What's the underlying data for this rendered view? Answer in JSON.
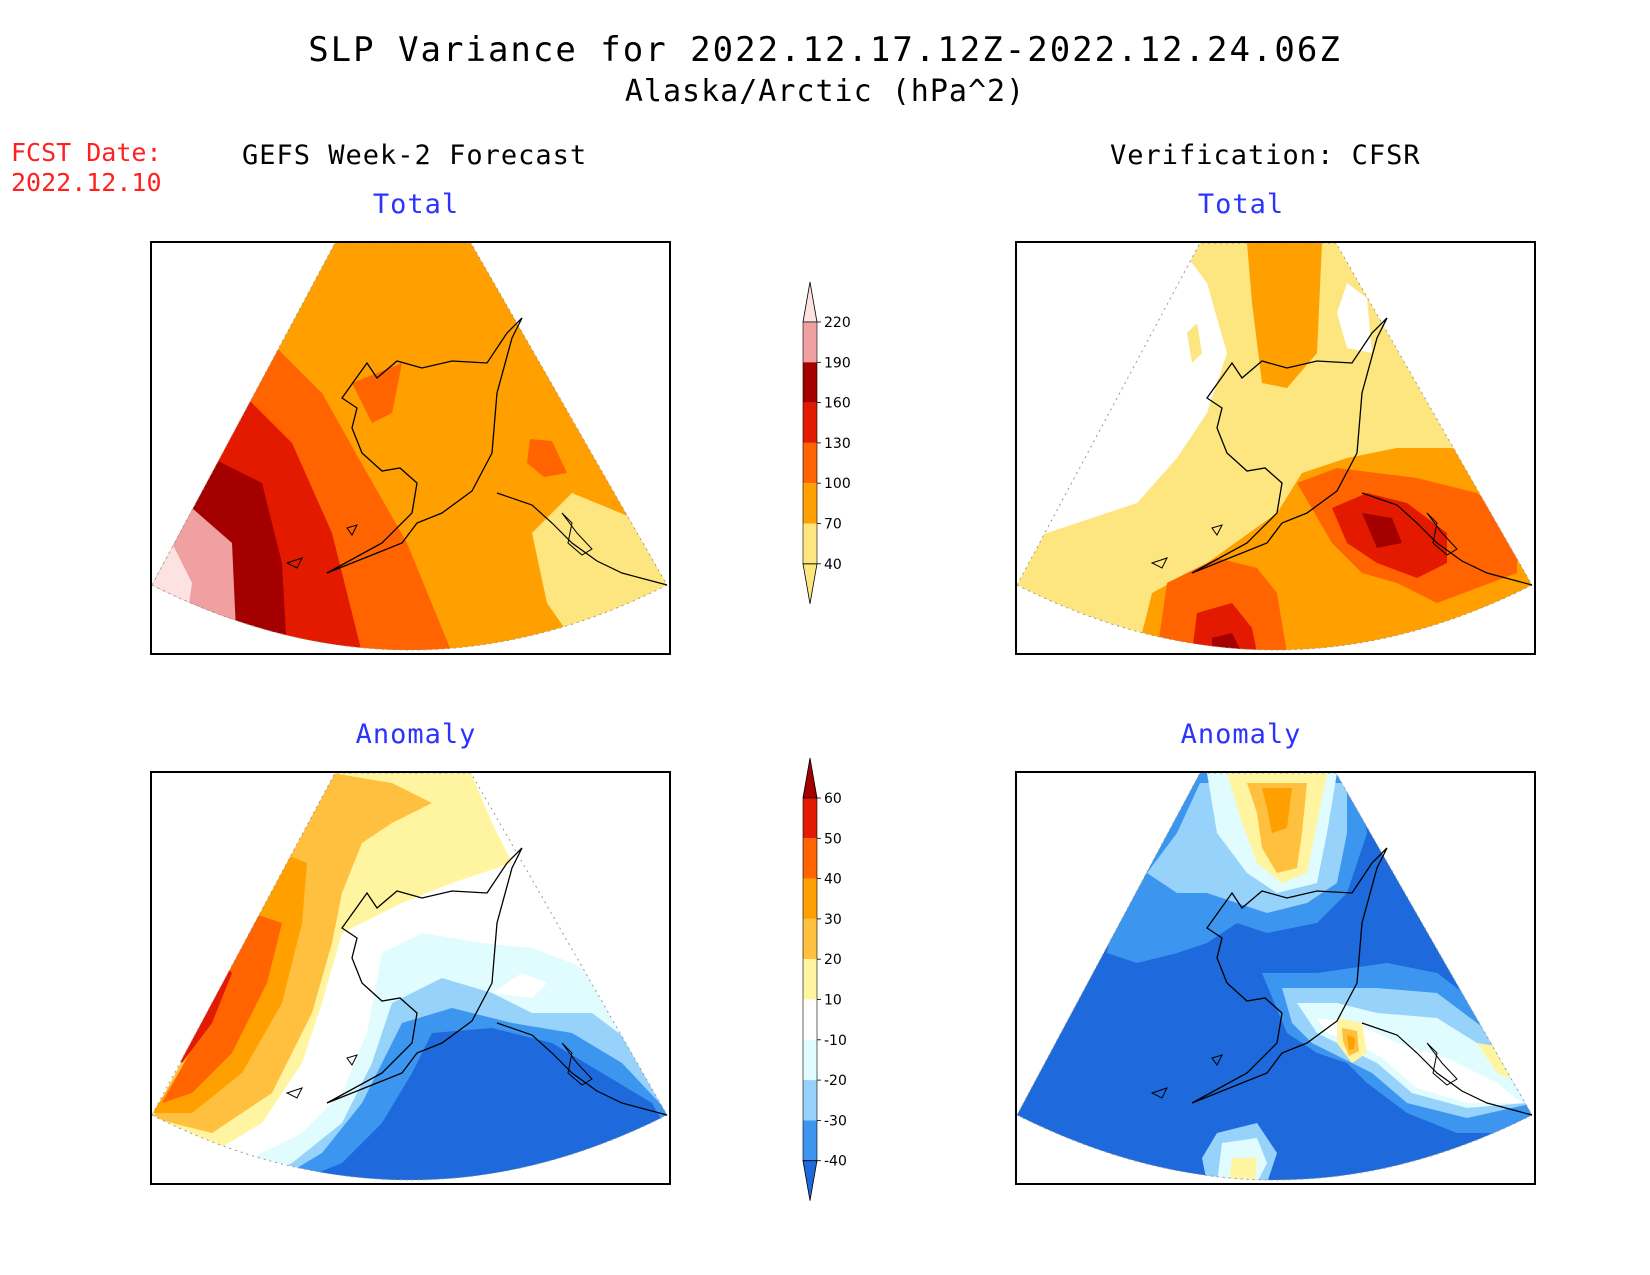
{
  "header": {
    "title": "SLP Variance for 2022.12.17.12Z-2022.12.24.06Z",
    "subtitle": "Alaska/Arctic (hPa^2)"
  },
  "fcst_date": {
    "label": "FCST Date:",
    "value": "2022.12.10"
  },
  "columns": {
    "left": "GEFS Week-2 Forecast",
    "right": "Verification: CFSR"
  },
  "panels": {
    "forecast_total": {
      "title": "Total"
    },
    "verification_total": {
      "title": "Total"
    },
    "forecast_anomaly": {
      "title": "Anomaly"
    },
    "verification_anomaly": {
      "title": "Anomaly"
    }
  },
  "colorbars": {
    "total": {
      "ticks": [
        "40",
        "70",
        "100",
        "130",
        "160",
        "190",
        "220"
      ],
      "colors": [
        "#fde680",
        "#ffa000",
        "#ff6400",
        "#e41a00",
        "#a50000",
        "#f0a0a0",
        "#fde2e2"
      ]
    },
    "anomaly": {
      "ticks": [
        "-40",
        "-30",
        "-20",
        "-10",
        "10",
        "20",
        "30",
        "40",
        "50",
        "60"
      ],
      "colors": [
        "#1e6adc",
        "#3c96f0",
        "#96d2fa",
        "#e0fcff",
        "#ffffff",
        "#fff5a0",
        "#ffc040",
        "#ffa000",
        "#ff6400",
        "#e41a00",
        "#a50000"
      ]
    }
  }
}
